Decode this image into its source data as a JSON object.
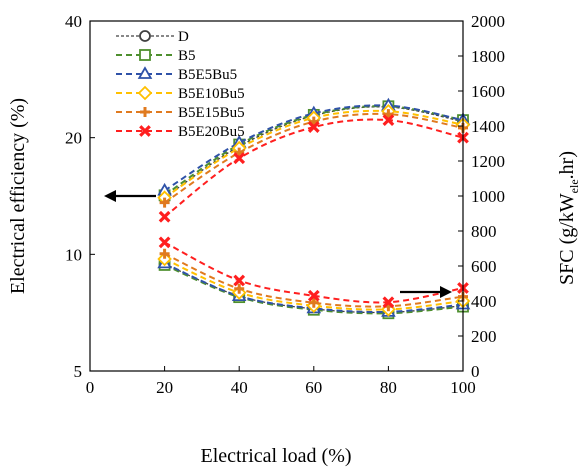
{
  "chart_data": {
    "type": "line",
    "x": [
      20,
      40,
      60,
      80,
      100
    ],
    "xlabel": "Electrical load (%)",
    "xlim": [
      0,
      100
    ],
    "xticks": [
      "0",
      "20",
      "40",
      "60",
      "80",
      "100"
    ],
    "ylabel_left": "Electrical efficiency (%)",
    "ylim_left": [
      5,
      40
    ],
    "yscale_left": "log",
    "yticks_left": [
      "5",
      "10",
      "20",
      "40"
    ],
    "ylabel_right_main": "SFC (g/kW",
    "ylabel_right_sub": "ele",
    "ylabel_right_end": ".hr)",
    "ylim_right": [
      0,
      2000
    ],
    "yticks_right": [
      "0",
      "200",
      "400",
      "600",
      "800",
      "1000",
      "1200",
      "1400",
      "1600",
      "1800",
      "2000"
    ],
    "grid": false,
    "legend_position": "top-left",
    "arrows": [
      {
        "points_to": "left-axis",
        "side": "left"
      },
      {
        "points_to": "right-axis",
        "side": "right"
      }
    ],
    "series": [
      {
        "name": "D",
        "color": "#404040",
        "marker": "circle",
        "efficiency": [
          14.0,
          19.0,
          22.8,
          24.0,
          22.0
        ],
        "sfc": [
          612,
          428,
          355,
          335,
          373
        ]
      },
      {
        "name": "B5",
        "color": "#4e8f2e",
        "marker": "square",
        "efficiency": [
          14.2,
          19.2,
          22.9,
          24.1,
          22.2
        ],
        "sfc": [
          606,
          422,
          350,
          330,
          368
        ]
      },
      {
        "name": "B5E5Bu5",
        "color": "#2f52a8",
        "marker": "triangle",
        "efficiency": [
          14.6,
          19.4,
          23.1,
          24.2,
          22.2
        ],
        "sfc": [
          615,
          428,
          358,
          338,
          380
        ]
      },
      {
        "name": "B5E10Bu5",
        "color": "#ffc000",
        "marker": "diamond",
        "efficiency": [
          14.0,
          18.8,
          22.5,
          23.4,
          21.6
        ],
        "sfc": [
          640,
          448,
          373,
          352,
          400
        ]
      },
      {
        "name": "B5E15Bu5",
        "color": "#e07a1f",
        "marker": "plus",
        "efficiency": [
          13.6,
          18.3,
          22.0,
          23.0,
          21.2
        ],
        "sfc": [
          670,
          470,
          390,
          370,
          425
        ]
      },
      {
        "name": "B5E20Bu5",
        "color": "#ff1f1f",
        "marker": "x",
        "efficiency": [
          12.5,
          17.7,
          21.3,
          22.2,
          20.0
        ],
        "sfc": [
          735,
          517,
          430,
          393,
          474
        ]
      }
    ]
  }
}
